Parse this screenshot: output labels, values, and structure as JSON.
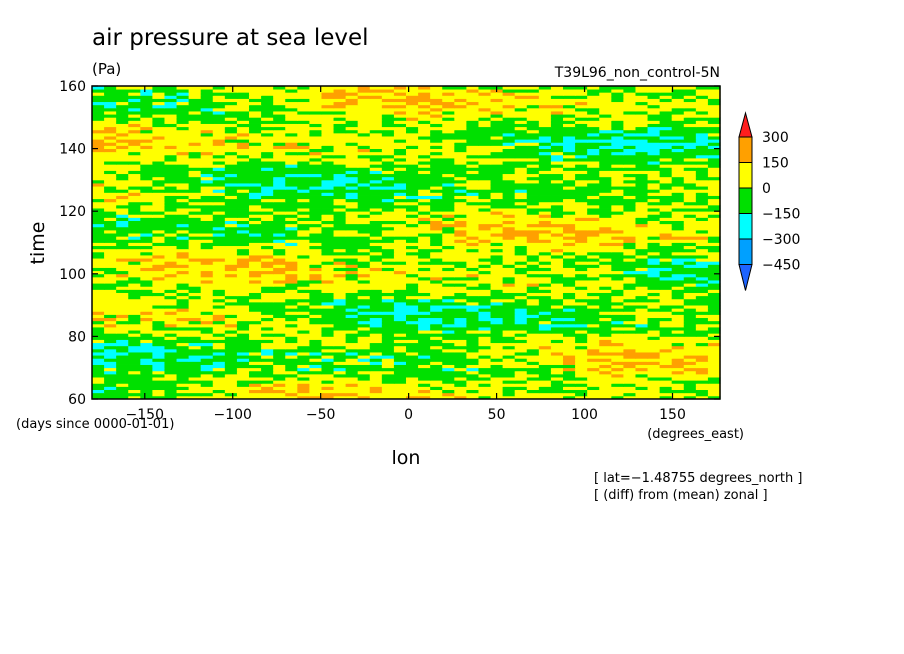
{
  "chart_data": {
    "type": "heatmap",
    "title": "air pressure at sea level",
    "units": "(Pa)",
    "run_label": "T39L96_non_control-5N",
    "xlabel": "lon",
    "x_units": "(degrees_east)",
    "ylabel": "time",
    "y_units": "(days since 0000-01-01)",
    "xlim": [
      -180,
      177
    ],
    "ylim": [
      60,
      160
    ],
    "x_ticks": [
      -150,
      -100,
      -50,
      0,
      50,
      100,
      150
    ],
    "x_tick_labels": [
      "−150",
      "−100",
      "−50",
      "0",
      "50",
      "100",
      "150"
    ],
    "y_ticks": [
      60,
      80,
      100,
      120,
      140,
      160
    ],
    "y_tick_labels": [
      "60",
      "80",
      "100",
      "120",
      "140",
      "160"
    ],
    "colorbar": {
      "levels": [
        300,
        150,
        0,
        -150,
        -300,
        -450
      ],
      "level_labels": [
        "300",
        "150",
        "0",
        "−150",
        "−300",
        "−450"
      ],
      "bins_top_to_bottom": [
        {
          "range": ">300",
          "color": "#ff1e1e"
        },
        {
          "range": "150..300",
          "color": "#ffa000"
        },
        {
          "range": "0..150",
          "color": "#ffff00"
        },
        {
          "range": "-150..0",
          "color": "#00e000"
        },
        {
          "range": "-300..-150",
          "color": "#00ffff"
        },
        {
          "range": "-450..-300",
          "color": "#00a0ff"
        },
        {
          "range": "<-450",
          "color": "#1e64ff"
        }
      ]
    },
    "annotations": [
      "[ lat=−1.48755 degrees_north ]",
      "[ (diff) from (mean) zonal ]"
    ]
  }
}
